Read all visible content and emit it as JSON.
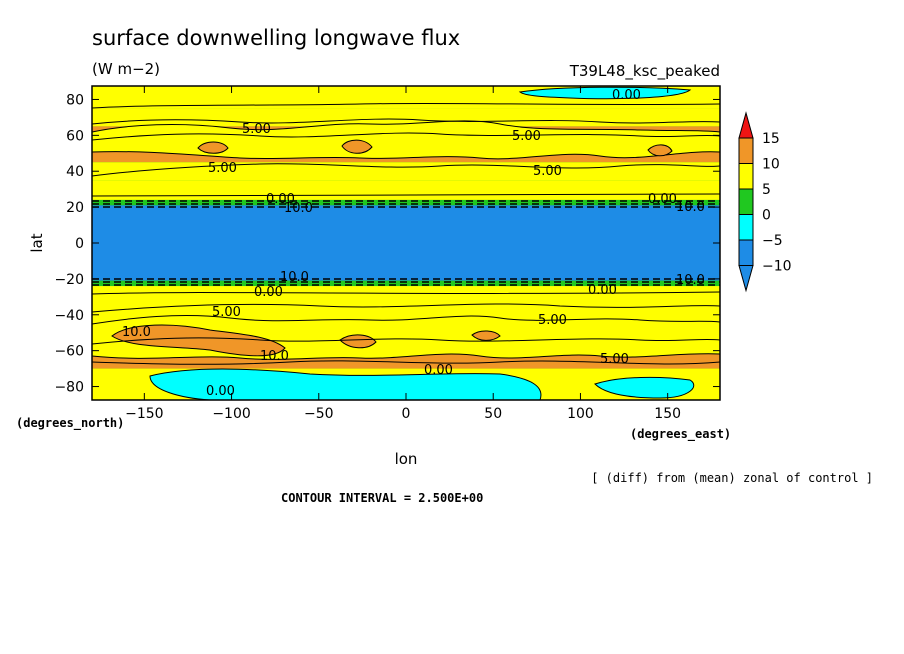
{
  "chart_data": {
    "type": "heatmap",
    "title": "surface downwelling longwave flux",
    "units": "(W m−2)",
    "run_label": "T39L48_ksc_peaked",
    "xlabel": "lon",
    "ylabel": "lat",
    "x_unit_label": "(degrees_east)",
    "y_unit_label": "(degrees_north)",
    "xlim": [
      -180,
      180
    ],
    "ylim": [
      -87.5,
      87.5
    ],
    "x_ticks": [
      -150,
      -100,
      -50,
      0,
      50,
      100,
      150
    ],
    "y_ticks": [
      80,
      60,
      40,
      20,
      0,
      -20,
      -40,
      -60,
      -80
    ],
    "x_tick_labels": [
      "−150",
      "−100",
      "−50",
      "0",
      "50",
      "100",
      "150"
    ],
    "y_tick_labels": [
      "80",
      "60",
      "40",
      "20",
      "0",
      "−20",
      "−40",
      "−60",
      "−80"
    ],
    "colorbar": {
      "levels": [
        -10,
        -5,
        0,
        5,
        10,
        15
      ],
      "labels": [
        "−10",
        "−5",
        "0",
        "5",
        "10",
        "15"
      ],
      "colors": [
        "#1e8ce6",
        "#00ffff",
        "#20c820",
        "#ffff00",
        "#f09628",
        "#f01414"
      ]
    },
    "bands": [
      {
        "lat_min": 75,
        "lat_max": 87.5,
        "value": 2.5
      },
      {
        "lat_min": 65,
        "lat_max": 75,
        "value": 3.5
      },
      {
        "lat_min": 45,
        "lat_max": 65,
        "value": 6.5
      },
      {
        "lat_min": 35,
        "lat_max": 45,
        "value": 3.5
      },
      {
        "lat_min": 24,
        "lat_max": 35,
        "value": 2.0
      },
      {
        "lat_min": 21,
        "lat_max": 24,
        "value": -4.0
      },
      {
        "lat_min": -21,
        "lat_max": 21,
        "value": -12.0
      },
      {
        "lat_min": -24,
        "lat_max": -21,
        "value": -4.0
      },
      {
        "lat_min": -45,
        "lat_max": -24,
        "value": 2.5
      },
      {
        "lat_min": -70,
        "lat_max": -45,
        "value": 6.5
      },
      {
        "lat_min": -87.5,
        "lat_max": -70,
        "value": 1.5
      }
    ],
    "contour_labels": [
      "0.00",
      "5.00",
      "5.00",
      "5.00",
      "5.00",
      "0.00",
      "10.0",
      "10.0",
      "0.00",
      "10.0",
      "10.0",
      "0.00",
      "0.00",
      "10.0",
      "5.00",
      "5.00",
      "10.0",
      "5.00",
      "0.00",
      "0.00"
    ],
    "contour_interval_text": "CONTOUR INTERVAL = 2.500E+00",
    "footnote": "[ (diff) from (mean) zonal of control ]"
  }
}
